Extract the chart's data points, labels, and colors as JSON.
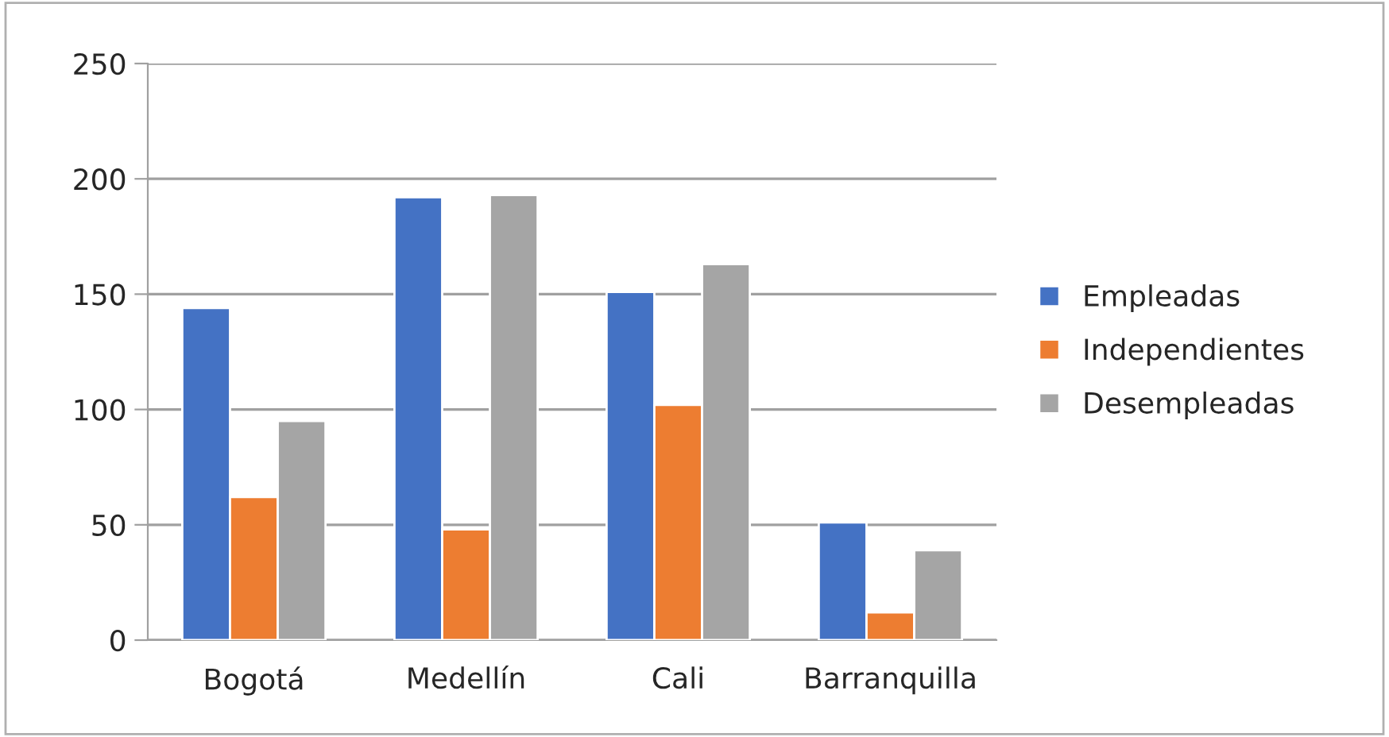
{
  "chart_data": {
    "type": "bar",
    "categories": [
      "Bogotá",
      "Medellín",
      "Cali",
      "Barranquilla"
    ],
    "series": [
      {
        "name": "Empleadas",
        "color": "#4472c4",
        "values": [
          144,
          192,
          151,
          51
        ]
      },
      {
        "name": "Independientes",
        "color": "#ed7d31",
        "values": [
          62,
          48,
          102,
          12
        ]
      },
      {
        "name": "Desempleadas",
        "color": "#a5a5a5",
        "values": [
          95,
          193,
          163,
          39
        ]
      }
    ],
    "ylim": [
      0,
      250
    ],
    "yticks": [
      0,
      50,
      100,
      150,
      200,
      250
    ],
    "grid": "y",
    "legend": "right"
  }
}
